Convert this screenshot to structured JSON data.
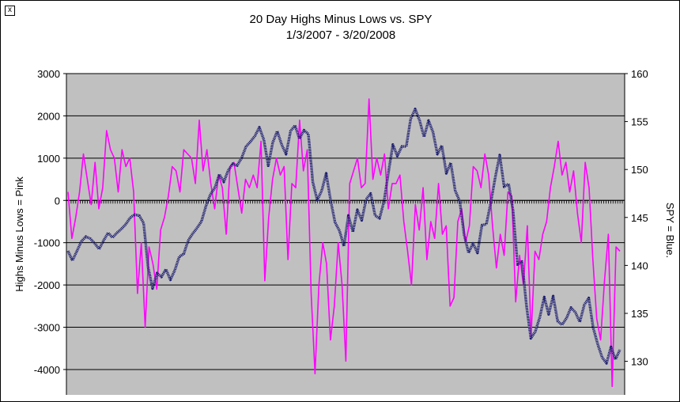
{
  "window": {
    "close_glyph": "x"
  },
  "chart_data": {
    "type": "line",
    "title": "20 Day Highs Minus Lows vs. SPY",
    "subtitle": "1/3/2007  - 3/20/2008",
    "ylabel_left": "Highs Minus Lows = Pink",
    "ylabel_right": "SPY = Blue.",
    "left_axis": {
      "ylim": [
        -4600,
        3000
      ],
      "ticks": [
        3000,
        2000,
        1000,
        0,
        -1000,
        -2000,
        -3000,
        -4000
      ],
      "tick_labels": [
        "3000",
        "2000",
        "1000",
        "0",
        "-1000",
        "-2000",
        "-3000",
        "-4000"
      ]
    },
    "right_axis": {
      "ylim": [
        126.5,
        160
      ],
      "ticks": [
        160,
        155,
        150,
        145,
        140,
        135,
        130
      ],
      "tick_labels": [
        "160",
        "155",
        "150",
        "145",
        "140",
        "135",
        "130"
      ]
    },
    "grid": true,
    "plot_background": "#c0c0c0",
    "series": [
      {
        "axis": "left",
        "color": "#ff00ff",
        "values": [
          200,
          -900,
          -400,
          200,
          1100,
          500,
          -100,
          900,
          -200,
          300,
          1650,
          1200,
          1000,
          200,
          1200,
          800,
          1000,
          200,
          -2200,
          -1000,
          -3000,
          -1100,
          -1500,
          -2100,
          -700,
          -400,
          100,
          800,
          700,
          200,
          1200,
          1100,
          1000,
          400,
          1900,
          700,
          1200,
          400,
          -200,
          600,
          300,
          -800,
          800,
          900,
          300,
          -300,
          500,
          300,
          600,
          300,
          1400,
          -1900,
          -400,
          500,
          1000,
          600,
          800,
          -1400,
          400,
          300,
          1900,
          700,
          1200,
          -2200,
          -4100,
          -2000,
          -1000,
          -1500,
          -3300,
          -2500,
          -1000,
          -2000,
          -3800,
          400,
          700,
          1000,
          300,
          400,
          2400,
          500,
          1000,
          600,
          1100,
          -200,
          400,
          400,
          600,
          -500,
          -1200,
          -2000,
          -100,
          -700,
          300,
          -1400,
          -500,
          -900,
          400,
          -800,
          -600,
          -2500,
          -2300,
          -500,
          -200,
          -1000,
          -600,
          800,
          700,
          300,
          1100,
          600,
          -600,
          -1600,
          -800,
          -1300,
          200,
          100,
          -2400,
          -1300,
          -2000,
          -600,
          -3200,
          -1200,
          -1400,
          -800,
          -500,
          300,
          800,
          1400,
          600,
          900,
          200,
          700,
          -300,
          -1000,
          900,
          300,
          -1400,
          -2800,
          -3300,
          -1900,
          -800,
          -4400,
          -1100,
          -1200
        ]
      },
      {
        "axis": "right",
        "color": "#1a1a6e",
        "values": [
          141.5,
          140.5,
          141.5,
          142.5,
          143,
          142.8,
          142.3,
          141.7,
          142.6,
          143.4,
          142.9,
          143.4,
          143.8,
          144.3,
          145,
          145.3,
          145.2,
          144.4,
          139.8,
          137.6,
          139.2,
          138.8,
          139.6,
          138.5,
          139.5,
          140.9,
          141.2,
          142.6,
          143.3,
          143.9,
          144.6,
          146.2,
          147.4,
          148.1,
          149.5,
          148.7,
          149.9,
          150.6,
          150.4,
          151.2,
          152.4,
          152.9,
          153.5,
          154.4,
          153.1,
          150.4,
          152.8,
          154,
          152.6,
          151.6,
          154,
          154.6,
          153.2,
          154.1,
          153.7,
          148.7,
          146.8,
          147.8,
          149.6,
          146.8,
          144.5,
          143.6,
          142,
          145.2,
          143.5,
          145.8,
          144.7,
          146.9,
          147.5,
          145.2,
          144.9,
          146.7,
          149.7,
          152.6,
          151.4,
          152.4,
          152.4,
          155.3,
          156.3,
          155.1,
          153.4,
          155.1,
          153.9,
          151.6,
          152.5,
          149.6,
          150.7,
          147.8,
          146.7,
          143.2,
          141.3,
          142.3,
          141.3,
          144.2,
          144.3,
          146.6,
          149.2,
          151.5,
          148.2,
          148.5,
          145.7,
          140.1,
          140.4,
          135.8,
          132.4,
          133.1,
          134.6,
          136.7,
          134.9,
          136.8,
          134.2,
          133.8,
          134.5,
          135.6,
          135.1,
          134.1,
          135.9,
          136.6,
          133.5,
          131.8,
          130.4,
          129.8,
          131.5,
          130.2,
          131.2
        ]
      }
    ]
  }
}
